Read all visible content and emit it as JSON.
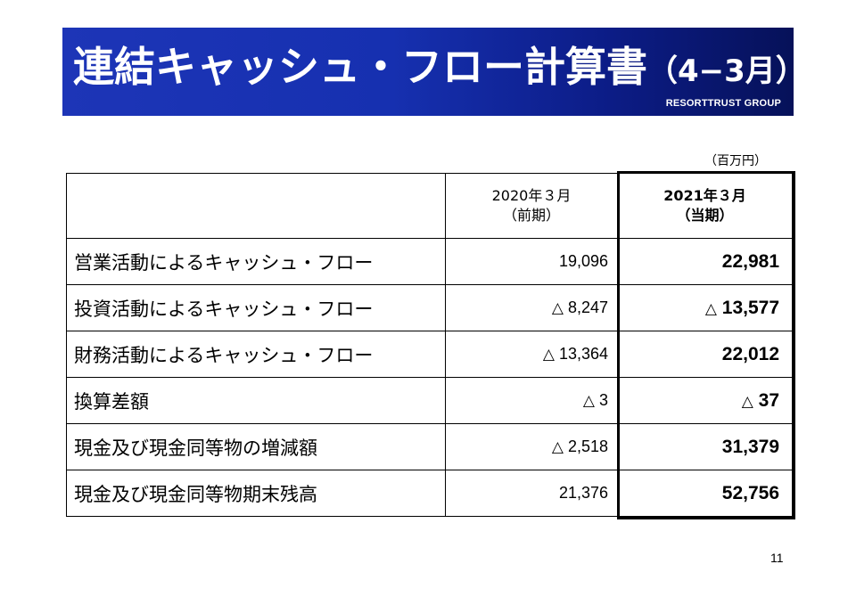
{
  "header": {
    "title": "連結キャッシュ・フロー計算書",
    "period": "（4−3月）",
    "brand": "RESORTTRUST GROUP",
    "colors": {
      "banner_start": "#1d35b7",
      "banner_end": "#061159",
      "title_text": "#ffffff"
    }
  },
  "unit_label": "（百万円）",
  "table": {
    "columns": [
      {
        "line1": "2020年３月",
        "line2": "（前期）"
      },
      {
        "line1": "2021年３月",
        "line2": "（当期）"
      }
    ],
    "rows": [
      {
        "label": "営業活動によるキャッシュ・フロー",
        "prev_mark": "",
        "prev": "19,096",
        "curr_mark": "",
        "curr": "22,981"
      },
      {
        "label": "投資活動によるキャッシュ・フロー",
        "prev_mark": "△",
        "prev": "8,247",
        "curr_mark": "△",
        "curr": "13,577"
      },
      {
        "label": "財務活動によるキャッシュ・フロー",
        "prev_mark": "△",
        "prev": "13,364",
        "curr_mark": "",
        "curr": "22,012"
      },
      {
        "label": "換算差額",
        "prev_mark": "△",
        "prev": "3",
        "curr_mark": "△",
        "curr": "37"
      },
      {
        "label": "現金及び現金同等物の増減額",
        "prev_mark": "△",
        "prev": "2,518",
        "curr_mark": "",
        "curr": "31,379"
      },
      {
        "label": "現金及び現金同等物期末残高",
        "prev_mark": "",
        "prev": "21,376",
        "curr_mark": "",
        "curr": "52,756"
      }
    ]
  },
  "page_number": "11"
}
